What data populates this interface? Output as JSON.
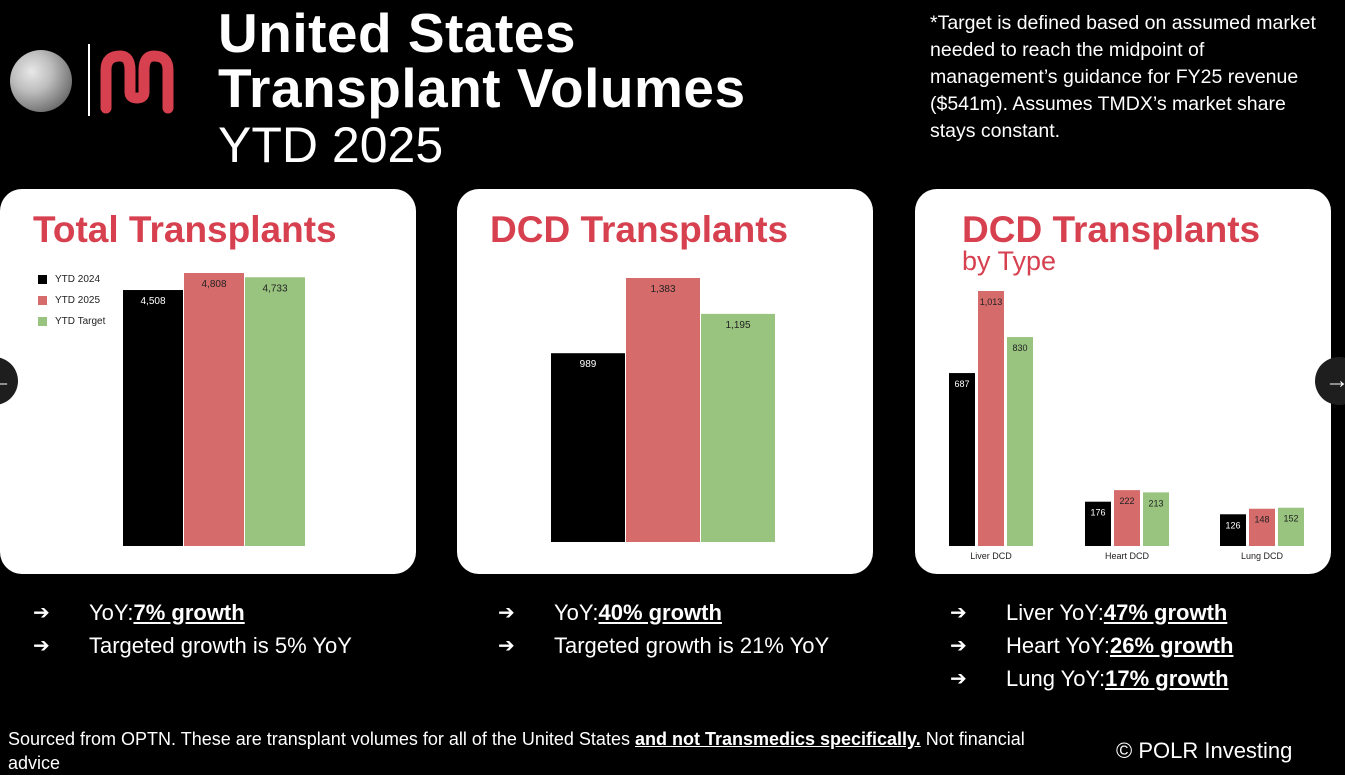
{
  "header": {
    "title_line1": "United States",
    "title_line2": "Transplant Volumes",
    "title_sub": "YTD 2025"
  },
  "footnote": "*Target is defined based on assumed market needed to reach the midpoint of management’s guidance for FY25 revenue ($541m). Assumes TMDX’s market share stays constant.",
  "colors": {
    "accent": "#d6404f",
    "ytd2024": "#000000",
    "ytd2025": "#d66b6b",
    "target": "#98c47f"
  },
  "icons": {
    "logo_moon": "moon-logo",
    "logo_brand": "brand-mark-logo",
    "prev": "arrow-left-icon",
    "next": "arrow-right-icon",
    "bullet": "arrow-right-icon"
  },
  "legend": {
    "items": [
      "YTD 2024",
      "YTD 2025",
      "YTD Target"
    ]
  },
  "chart_data": [
    {
      "type": "bar",
      "title": "Total Transplants",
      "categories": [
        ""
      ],
      "series": [
        {
          "name": "YTD 2024",
          "values": [
            4508
          ]
        },
        {
          "name": "YTD 2025",
          "values": [
            4808
          ]
        },
        {
          "name": "YTD Target",
          "values": [
            4733
          ]
        }
      ],
      "labels": [
        [
          "4,508"
        ],
        [
          "4,808"
        ],
        [
          "4,733"
        ]
      ],
      "legend": "top-left",
      "grid": false,
      "ylim": [
        0,
        4808
      ]
    },
    {
      "type": "bar",
      "title": "DCD Transplants",
      "categories": [
        ""
      ],
      "series": [
        {
          "name": "YTD 2024",
          "values": [
            989
          ]
        },
        {
          "name": "YTD 2025",
          "values": [
            1383
          ]
        },
        {
          "name": "YTD Target",
          "values": [
            1195
          ]
        }
      ],
      "labels": [
        [
          "989"
        ],
        [
          "1,383"
        ],
        [
          "1,195"
        ]
      ],
      "grid": false,
      "ylim": [
        0,
        1383
      ]
    },
    {
      "type": "bar",
      "title": "DCD Transplants",
      "subtitle": "by Type",
      "categories": [
        "Liver DCD",
        "Heart DCD",
        "Lung DCD"
      ],
      "series": [
        {
          "name": "YTD 2024",
          "values": [
            687,
            176,
            126
          ]
        },
        {
          "name": "YTD 2025",
          "values": [
            1013,
            222,
            148
          ]
        },
        {
          "name": "YTD Target",
          "values": [
            830,
            213,
            152
          ]
        }
      ],
      "labels": [
        [
          "687",
          "176",
          "126"
        ],
        [
          "1,013",
          "222",
          "148"
        ],
        [
          "830",
          "213",
          "152"
        ]
      ],
      "grid": false,
      "ylim": [
        0,
        1013
      ]
    }
  ],
  "bullets": {
    "card1": [
      {
        "prefix": "YoY: ",
        "emphasis": "7% growth",
        "suffix": ""
      },
      {
        "prefix": "Targeted growth is 5% YoY",
        "emphasis": "",
        "suffix": ""
      }
    ],
    "card2": [
      {
        "prefix": "YoY: ",
        "emphasis": " 40% growth",
        "suffix": ""
      },
      {
        "prefix": "Targeted growth is 21% YoY",
        "emphasis": "",
        "suffix": ""
      }
    ],
    "card3": [
      {
        "prefix": "Liver YoY: ",
        "emphasis": "47% growth",
        "suffix": ""
      },
      {
        "prefix": "Heart YoY: ",
        "emphasis": "26% growth",
        "suffix": ""
      },
      {
        "prefix": "Lung YoY: ",
        "emphasis": "17% growth",
        "suffix": ""
      }
    ]
  },
  "source": {
    "text1": "Sourced from OPTN. These are transplant volumes for all of the United States ",
    "strong": "and not Transmedics specifically.",
    "text2": " Not financial advice"
  },
  "credit": "© POLR Investing"
}
